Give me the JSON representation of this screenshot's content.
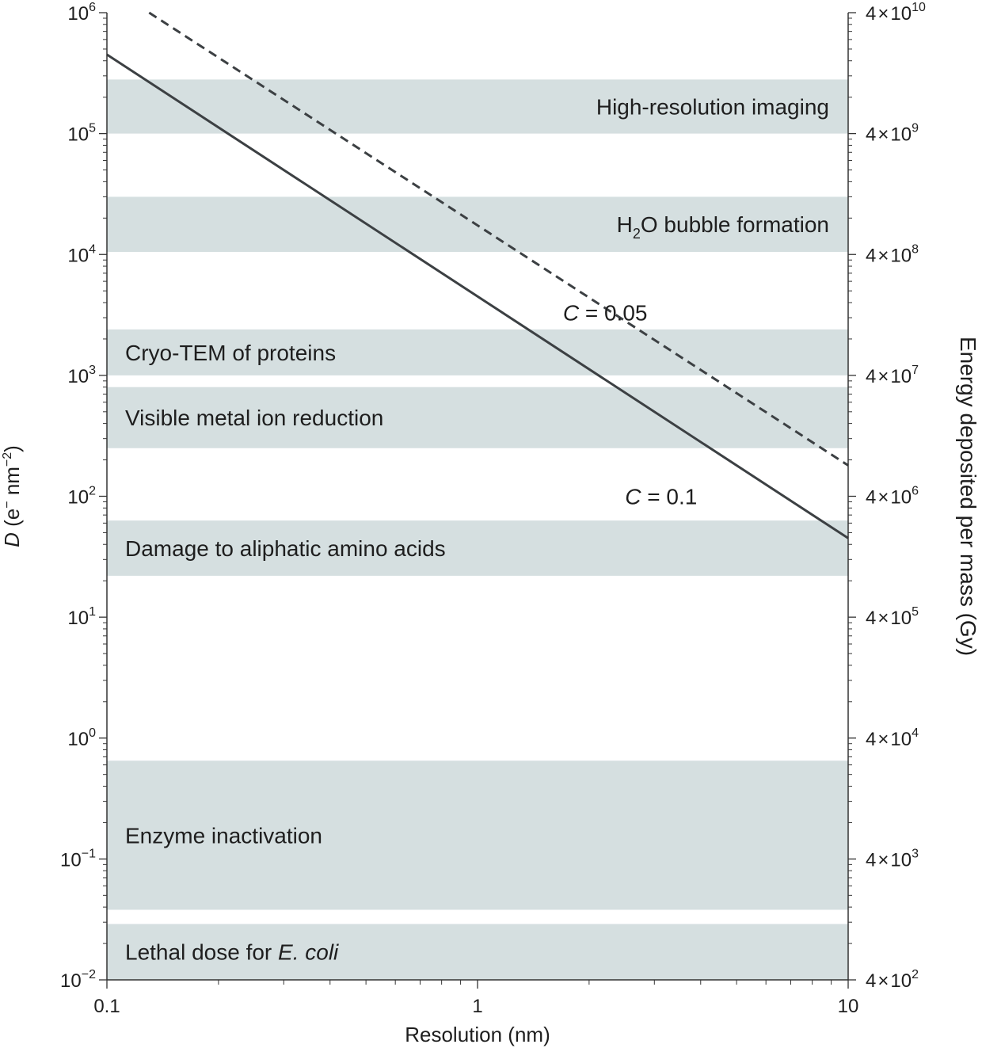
{
  "chart_data": {
    "type": "line",
    "xlabel": "Resolution (nm)",
    "ylabel_left": {
      "italic": "D",
      "rest": " (e",
      "sup1": "−",
      "mid": " nm",
      "sup2": "−2",
      "end": ")"
    },
    "ylabel_right": "Energy deposited per mass (Gy)",
    "x_scale": "log",
    "y_scale": "log",
    "xlim": [
      0.1,
      10
    ],
    "ylim": [
      0.01,
      1000000
    ],
    "x_ticks": [
      {
        "value": 0.1,
        "label": "0.1"
      },
      {
        "value": 1,
        "label": "1"
      },
      {
        "value": 10,
        "label": "10"
      }
    ],
    "y_ticks_left": [
      {
        "value": 0.01,
        "base": "10",
        "exp": "−2"
      },
      {
        "value": 0.1,
        "base": "10",
        "exp": "−1"
      },
      {
        "value": 1,
        "base": "10",
        "exp": "0"
      },
      {
        "value": 10,
        "base": "10",
        "exp": "1"
      },
      {
        "value": 100,
        "base": "10",
        "exp": "2"
      },
      {
        "value": 1000,
        "base": "10",
        "exp": "3"
      },
      {
        "value": 10000,
        "base": "10",
        "exp": "4"
      },
      {
        "value": 100000,
        "base": "10",
        "exp": "5"
      },
      {
        "value": 1000000,
        "base": "10",
        "exp": "6"
      }
    ],
    "y_ticks_right": [
      {
        "value": 0.01,
        "coef": "4",
        "base": "10",
        "exp": "2"
      },
      {
        "value": 0.1,
        "coef": "4",
        "base": "10",
        "exp": "3"
      },
      {
        "value": 1,
        "coef": "4",
        "base": "10",
        "exp": "4"
      },
      {
        "value": 10,
        "coef": "4",
        "base": "10",
        "exp": "5"
      },
      {
        "value": 100,
        "coef": "4",
        "base": "10",
        "exp": "6"
      },
      {
        "value": 1000,
        "coef": "4",
        "base": "10",
        "exp": "7"
      },
      {
        "value": 10000,
        "coef": "4",
        "base": "10",
        "exp": "8"
      },
      {
        "value": 100000,
        "coef": "4",
        "base": "10",
        "exp": "9"
      },
      {
        "value": 1000000,
        "coef": "4",
        "base": "10",
        "exp": "10"
      }
    ],
    "bands": [
      {
        "ymin": 100000,
        "ymax": 280000,
        "label": "High-resolution imaging",
        "align": "right"
      },
      {
        "ymin": 10500,
        "ymax": 30000,
        "label_parts": [
          {
            "text": "H"
          },
          {
            "text": "2",
            "sub": true
          },
          {
            "text": "O bubble formation"
          }
        ],
        "align": "right"
      },
      {
        "ymin": 1000,
        "ymax": 2400,
        "label": "Cryo-TEM of proteins",
        "align": "left"
      },
      {
        "ymin": 250,
        "ymax": 800,
        "label": "Visible metal ion reduction",
        "align": "left"
      },
      {
        "ymin": 22,
        "ymax": 63,
        "label": "Damage to aliphatic amino acids",
        "align": "left"
      },
      {
        "ymin": 0.038,
        "ymax": 0.65,
        "label": "Enzyme inactivation",
        "align": "left"
      },
      {
        "ymin": 0.01,
        "ymax": 0.029,
        "label_parts": [
          {
            "text": "Lethal dose for "
          },
          {
            "text": "E. coli",
            "italic": true
          }
        ],
        "align": "left"
      }
    ],
    "series": [
      {
        "name": "C = 0.1",
        "label_italic": "C",
        "label_rest": " = 0.1",
        "style": "solid",
        "points": [
          [
            0.1,
            450000
          ],
          [
            10,
            45
          ]
        ],
        "label_at": [
          2.5,
          100
        ]
      },
      {
        "name": "C = 0.05",
        "label_italic": "C",
        "label_rest": " = 0.05",
        "style": "dashed",
        "points": [
          [
            0.13,
            1000000
          ],
          [
            10,
            180
          ]
        ],
        "label_at": [
          1.7,
          3300
        ]
      }
    ],
    "colors": {
      "band": "#d5dfe0",
      "line": "#3c4043",
      "axis": "#333333",
      "text": "#1e1e1e"
    }
  }
}
